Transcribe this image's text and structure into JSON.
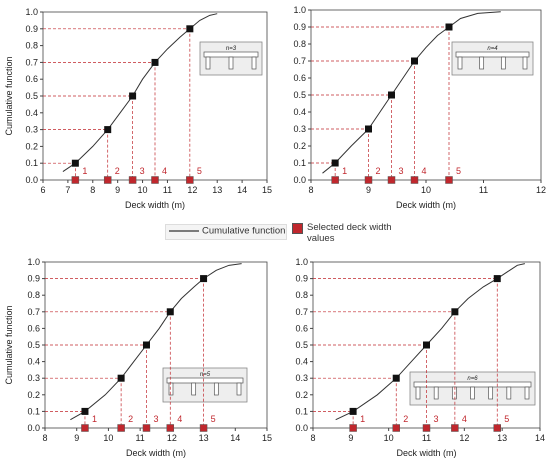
{
  "chart_data": [
    {
      "type": "line",
      "xlabel": "Deck width (m)",
      "ylabel": "Cumulative function",
      "inset": "n=3",
      "xlim": [
        6,
        15
      ],
      "xticks": [
        6,
        7,
        8,
        9,
        10,
        11,
        12,
        13,
        14,
        15
      ],
      "ylim": [
        0,
        1
      ],
      "yticks": [
        {
          "value": 0,
          "label": "0.0"
        },
        0.1,
        0.2,
        0.3,
        0.4,
        0.5,
        0.6,
        0.7,
        0.8,
        0.9,
        {
          "value": 1,
          "label": "1.0"
        }
      ],
      "series": [
        {
          "name": "Cumulative function",
          "color": "#333333",
          "x": [
            6.8,
            7.3,
            8.0,
            8.6,
            9.1,
            9.6,
            10.0,
            10.5,
            11.0,
            11.5,
            11.9,
            12.3,
            12.7,
            13.0
          ],
          "values": [
            0.05,
            0.1,
            0.2,
            0.3,
            0.4,
            0.5,
            0.6,
            0.7,
            0.78,
            0.85,
            0.9,
            0.95,
            0.98,
            0.99
          ]
        }
      ],
      "points": {
        "x": [
          7.3,
          8.6,
          9.6,
          10.5,
          11.9
        ],
        "values": [
          0.1,
          0.3,
          0.5,
          0.7,
          0.9
        ],
        "labels": [
          "1",
          "2",
          "3",
          "4",
          "5"
        ]
      }
    },
    {
      "type": "line",
      "xlabel": "Deck width (m)",
      "inset": "n=4",
      "xlim": [
        8,
        12
      ],
      "xticks": [
        8,
        9,
        10,
        11,
        12
      ],
      "ylim": [
        0,
        1
      ],
      "yticks": [
        {
          "value": 0,
          "label": "0.0"
        },
        0.1,
        0.2,
        0.3,
        0.4,
        0.5,
        0.6,
        0.7,
        0.8,
        0.9,
        {
          "value": 1,
          "label": "1.0"
        }
      ],
      "series": [
        {
          "name": "Cumulative function",
          "color": "#333333",
          "x": [
            8.2,
            8.42,
            8.7,
            9.0,
            9.2,
            9.4,
            9.6,
            9.8,
            10.0,
            10.2,
            10.4,
            10.6,
            10.9,
            11.3
          ],
          "values": [
            0.04,
            0.1,
            0.2,
            0.3,
            0.4,
            0.5,
            0.6,
            0.7,
            0.78,
            0.85,
            0.9,
            0.95,
            0.98,
            0.99
          ]
        }
      ],
      "points": {
        "x": [
          8.42,
          9.0,
          9.4,
          9.8,
          10.4
        ],
        "values": [
          0.1,
          0.3,
          0.5,
          0.7,
          0.9
        ],
        "labels": [
          "1",
          "2",
          "3",
          "4",
          "5"
        ]
      }
    },
    {
      "type": "line",
      "xlabel": "Deck width (m)",
      "ylabel": "Cumulative function",
      "inset": "n=5",
      "xlim": [
        8,
        15
      ],
      "xticks": [
        8,
        9,
        10,
        11,
        12,
        13,
        14,
        15
      ],
      "ylim": [
        0,
        1
      ],
      "yticks": [
        {
          "value": 0,
          "label": "0.0"
        },
        0.1,
        0.2,
        0.3,
        0.4,
        0.5,
        0.6,
        0.7,
        0.8,
        0.9,
        {
          "value": 1,
          "label": "1.0"
        }
      ],
      "series": [
        {
          "name": "Cumulative function",
          "color": "#333333",
          "x": [
            8.8,
            9.26,
            9.9,
            10.4,
            10.8,
            11.2,
            11.6,
            11.95,
            12.3,
            12.7,
            13.0,
            13.4,
            13.8,
            14.2
          ],
          "values": [
            0.05,
            0.1,
            0.2,
            0.3,
            0.4,
            0.5,
            0.6,
            0.7,
            0.78,
            0.85,
            0.9,
            0.95,
            0.98,
            0.99
          ]
        }
      ],
      "points": {
        "x": [
          9.26,
          10.4,
          11.2,
          11.95,
          13.0
        ],
        "values": [
          0.1,
          0.3,
          0.5,
          0.7,
          0.9
        ],
        "labels": [
          "1",
          "2",
          "3",
          "4",
          "5"
        ]
      }
    },
    {
      "type": "line",
      "xlabel": "Deck width (m)",
      "inset": "n=6",
      "xlim": [
        8,
        14
      ],
      "xticks": [
        8,
        9,
        10,
        11,
        12,
        13,
        14
      ],
      "ylim": [
        0,
        1
      ],
      "yticks": [
        {
          "value": 0,
          "label": "0.0"
        },
        0.1,
        0.2,
        0.3,
        0.4,
        0.5,
        0.6,
        0.7,
        0.8,
        0.9,
        {
          "value": 1,
          "label": "1.0"
        }
      ],
      "series": [
        {
          "name": "Cumulative function",
          "color": "#333333",
          "x": [
            8.6,
            9.06,
            9.7,
            10.2,
            10.6,
            11.0,
            11.4,
            11.75,
            12.1,
            12.5,
            12.87,
            13.2,
            13.4,
            13.6
          ],
          "values": [
            0.05,
            0.1,
            0.2,
            0.3,
            0.4,
            0.5,
            0.6,
            0.7,
            0.78,
            0.85,
            0.9,
            0.95,
            0.98,
            0.99
          ]
        }
      ],
      "points": {
        "x": [
          9.06,
          10.2,
          11.0,
          11.75,
          12.87
        ],
        "values": [
          0.1,
          0.3,
          0.5,
          0.7,
          0.9
        ],
        "labels": [
          "1",
          "2",
          "3",
          "4",
          "5"
        ]
      }
    }
  ],
  "legend": [
    {
      "name": "Cumulative function",
      "color": "#333333"
    },
    {
      "name": "Selected deck width values",
      "color": "#c0272d"
    }
  ]
}
